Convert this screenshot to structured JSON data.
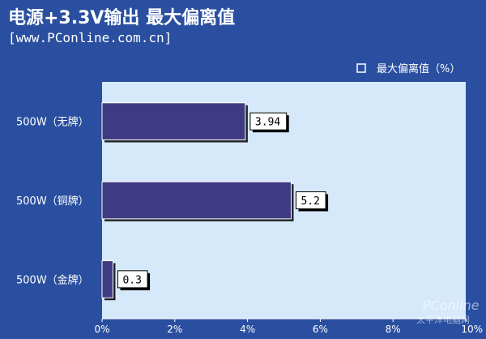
{
  "header": {
    "title": "电源+3.3V输出 最大偏离值",
    "subtitle": "[www.PConline.com.cn]"
  },
  "watermark": {
    "logo_text": "PConline",
    "sub_text": "太平洋电脑网"
  },
  "colors": {
    "background": "#2a4fa0",
    "plot_area": "#d6e9fb",
    "bar_fill": "#3f3b83",
    "bar_border": "#ffffff",
    "label_box": "#ffffff"
  },
  "chart_data": {
    "type": "bar",
    "orientation": "horizontal",
    "title": "电源+3.3V输出 最大偏离值",
    "categories": [
      "500W（无牌）",
      "500W（铜牌）",
      "500W（金牌）"
    ],
    "series": [
      {
        "name": "最大偏离值（%）",
        "values": [
          3.94,
          5.2,
          0.3
        ]
      }
    ],
    "data_labels": [
      "3.94",
      "5.2",
      "0.3"
    ],
    "xlim": [
      0,
      10
    ],
    "x_ticks": [
      0,
      2,
      4,
      6,
      8,
      10
    ],
    "x_tick_labels": [
      "0%",
      "2%",
      "4%",
      "6%",
      "8%",
      "10%"
    ],
    "xlabel": "",
    "ylabel": "",
    "grid": false,
    "legend_position": "top-right"
  }
}
